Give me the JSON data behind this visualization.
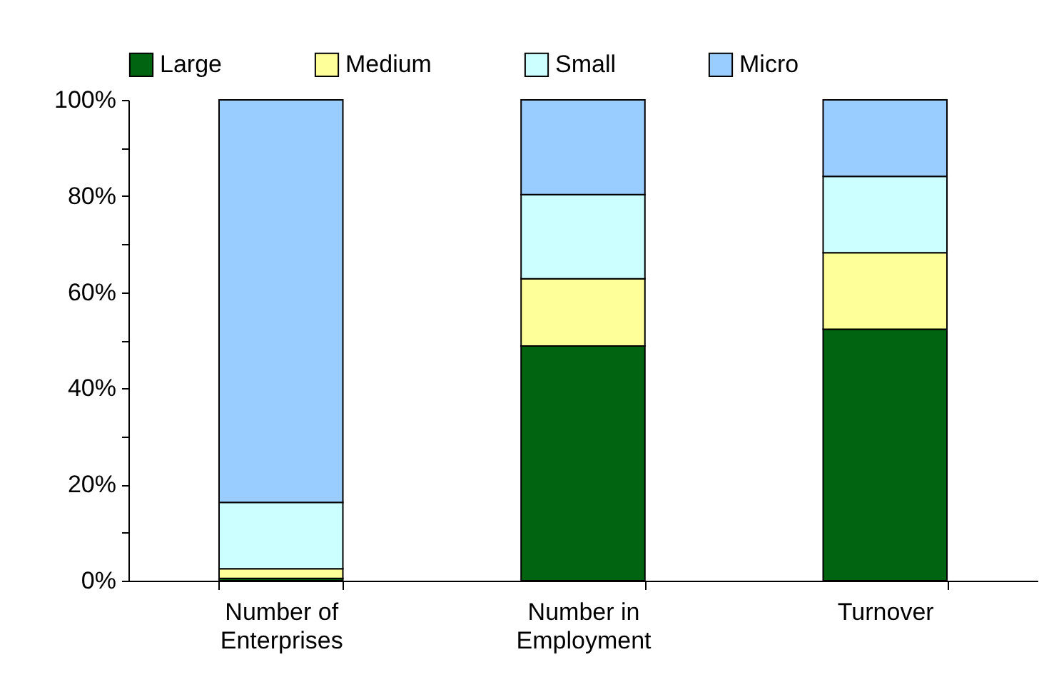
{
  "chart_data": {
    "type": "bar",
    "stacked": true,
    "legend": "top",
    "categories": [
      "Number of Enterprises",
      "Number in Employment",
      "Turnover"
    ],
    "series": [
      {
        "name": "Large",
        "color": "#006411",
        "values": [
          0.5,
          48.8,
          52.3
        ]
      },
      {
        "name": "Medium",
        "color": "#ffff99",
        "values": [
          2.0,
          14.0,
          15.9
        ]
      },
      {
        "name": "Small",
        "color": "#ccffff",
        "values": [
          13.8,
          17.5,
          15.9
        ]
      },
      {
        "name": "Micro",
        "color": "#99ccff",
        "values": [
          83.7,
          19.7,
          15.9
        ]
      }
    ],
    "ylim": [
      0,
      100
    ],
    "yticks": [
      {
        "value": 0,
        "label": "0%"
      },
      {
        "value": 10,
        "label": null
      },
      {
        "value": 20,
        "label": "20%"
      },
      {
        "value": 30,
        "label": null
      },
      {
        "value": 40,
        "label": "40%"
      },
      {
        "value": 50,
        "label": null
      },
      {
        "value": 60,
        "label": "60%"
      },
      {
        "value": 70,
        "label": null
      },
      {
        "value": 80,
        "label": "80%"
      },
      {
        "value": 90,
        "label": null
      },
      {
        "value": 100,
        "label": "100%"
      }
    ]
  }
}
